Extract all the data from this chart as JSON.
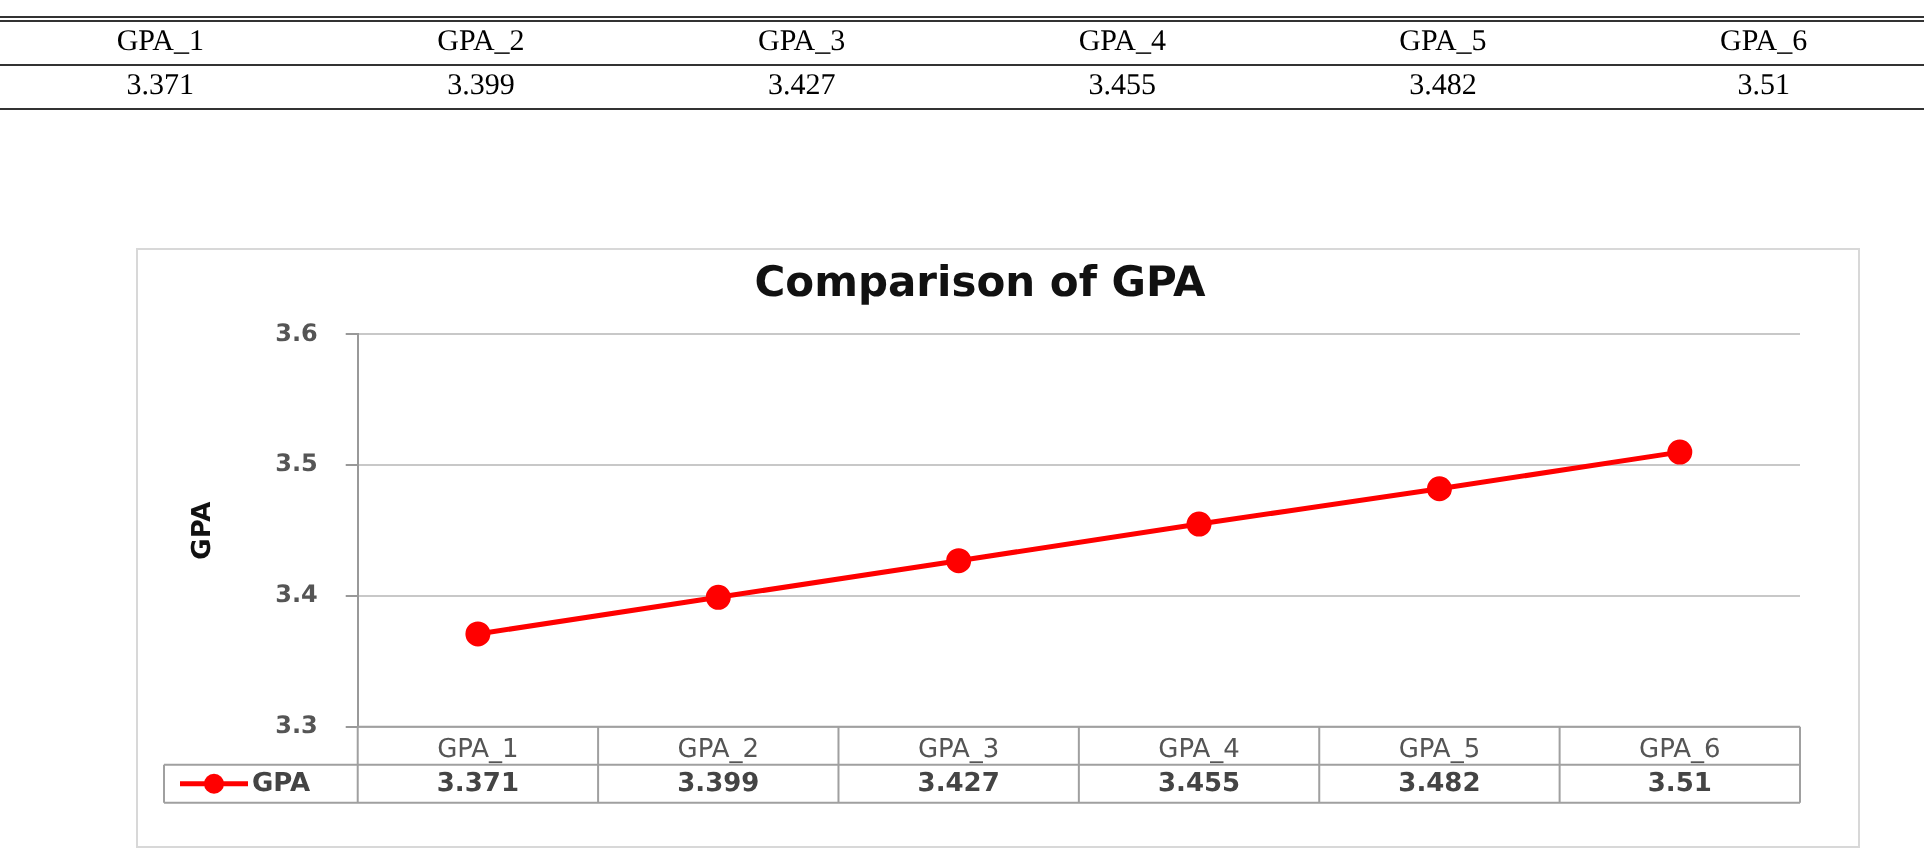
{
  "chart_data": {
    "type": "line",
    "title": "Comparison of GPA",
    "ylabel": "GPA",
    "categories": [
      "GPA_1",
      "GPA_2",
      "GPA_3",
      "GPA_4",
      "GPA_5",
      "GPA_6"
    ],
    "series": [
      {
        "name": "GPA",
        "color": "#ff0000",
        "values": [
          3.371,
          3.399,
          3.427,
          3.455,
          3.482,
          3.51
        ]
      }
    ],
    "annotations": [
      "3.371",
      "3.399",
      "3.427",
      "3.455",
      "3.482",
      "3.51"
    ],
    "ylim": [
      3.3,
      3.6
    ],
    "yticks": [
      3.3,
      3.4,
      3.5,
      3.6
    ],
    "grid": "y",
    "legend": "bottom",
    "marker": "circle",
    "line_style": "solid",
    "data_labels": true
  }
}
